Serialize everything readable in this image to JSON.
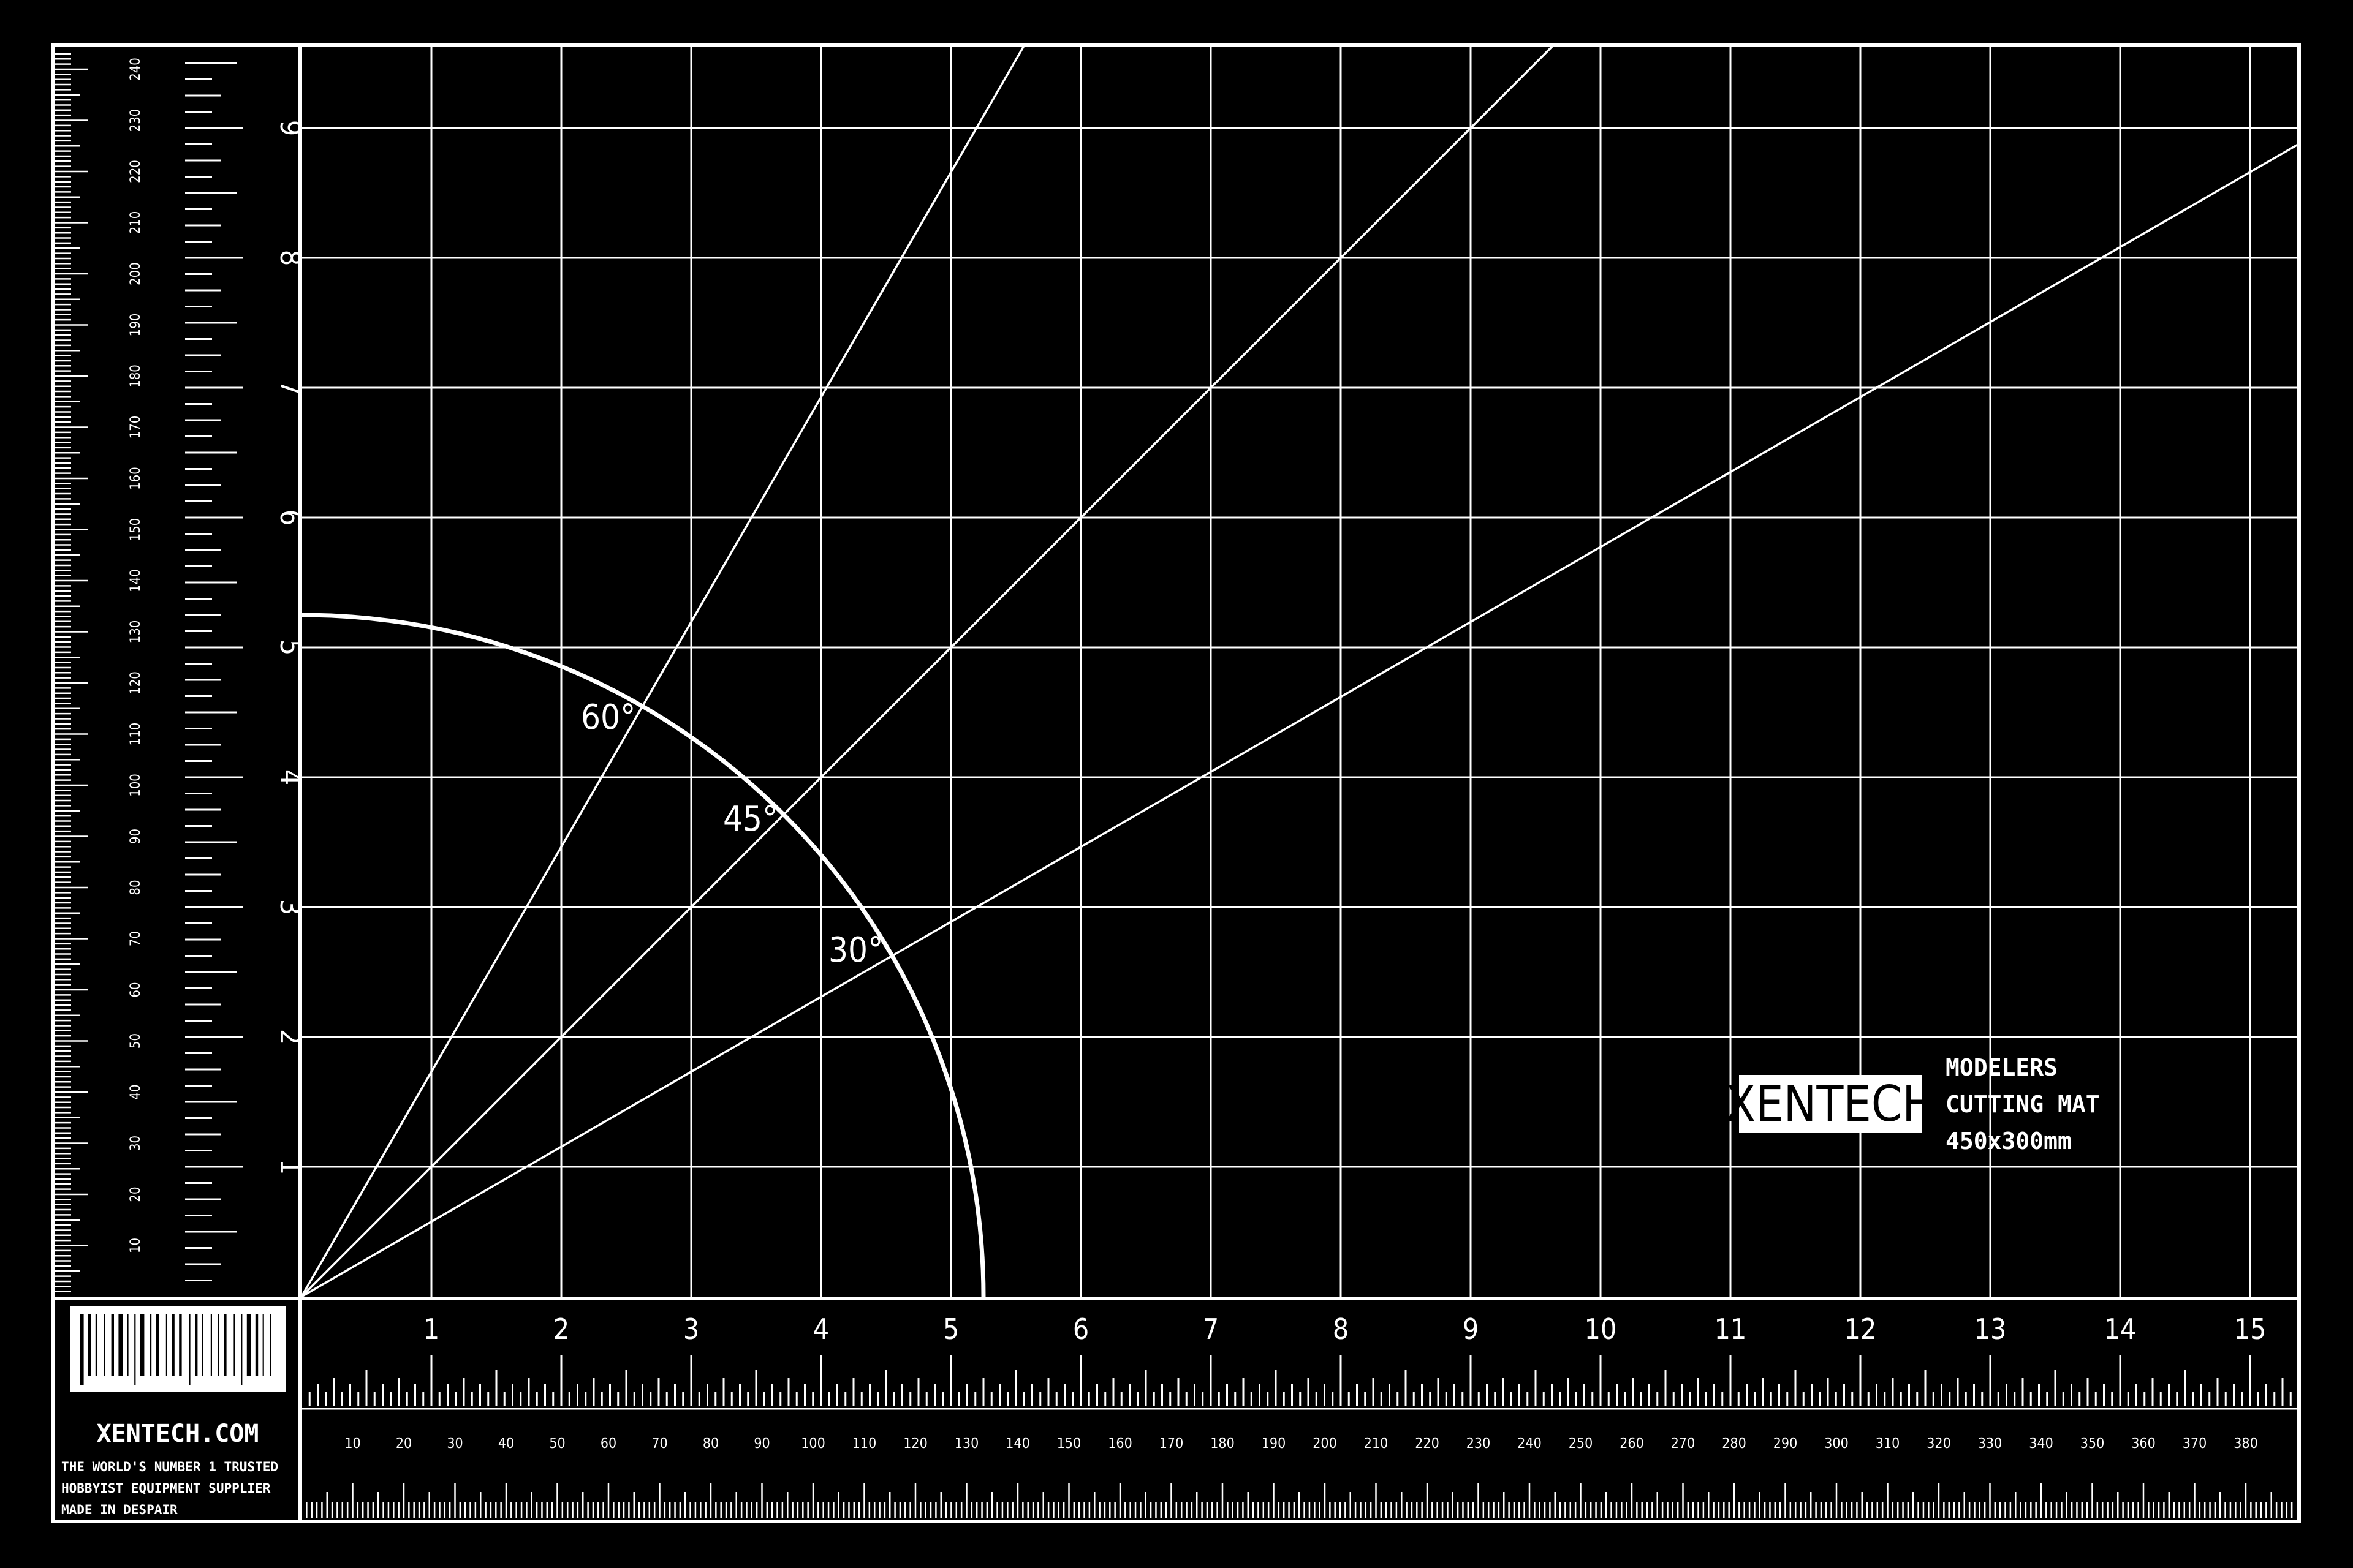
{
  "brand": {
    "logo_text": "XENTECH",
    "website": "XENTECH.COM",
    "tagline_lines": [
      "THE WORLD'S NUMBER 1 TRUSTED",
      "HOBBYIST EQUIPMENT SUPPLIER",
      "MADE IN DESPAIR"
    ]
  },
  "product": {
    "title_line1": "MODELERS",
    "title_line2": "CUTTING MAT",
    "size": "450x300mm"
  },
  "angle_labels": [
    "60°",
    "45°",
    "30°"
  ],
  "guides": {
    "angles_deg": [
      60,
      45,
      30
    ],
    "arc_radius_units": 5.25,
    "grid_columns": 15,
    "grid_rows": 9
  },
  "scales": {
    "inch_labels": [
      "1",
      "2",
      "3",
      "4",
      "5",
      "6",
      "7",
      "8",
      "9",
      "10",
      "11",
      "12",
      "13",
      "14",
      "15"
    ],
    "vertical_unit_labels": [
      "1",
      "2",
      "3",
      "4",
      "5",
      "6",
      "7",
      "8",
      "9"
    ],
    "mm_labels_horizontal": [
      "10",
      "20",
      "30",
      "40",
      "50",
      "60",
      "70",
      "80",
      "90",
      "100",
      "110",
      "120",
      "130",
      "140",
      "150",
      "160",
      "170",
      "180",
      "190",
      "200",
      "210",
      "220",
      "230",
      "240",
      "250",
      "260",
      "270",
      "280",
      "290",
      "300",
      "310",
      "320",
      "330",
      "340",
      "350",
      "360",
      "370",
      "380"
    ],
    "mm_labels_vertical": [
      "10",
      "20",
      "30",
      "40",
      "50",
      "60",
      "70",
      "80",
      "90",
      "100",
      "110",
      "120",
      "130",
      "140",
      "150",
      "160",
      "170",
      "180",
      "190",
      "200",
      "210",
      "220",
      "230",
      "240"
    ]
  },
  "colors": {
    "background": "#000000",
    "lines": "#ffffff"
  }
}
